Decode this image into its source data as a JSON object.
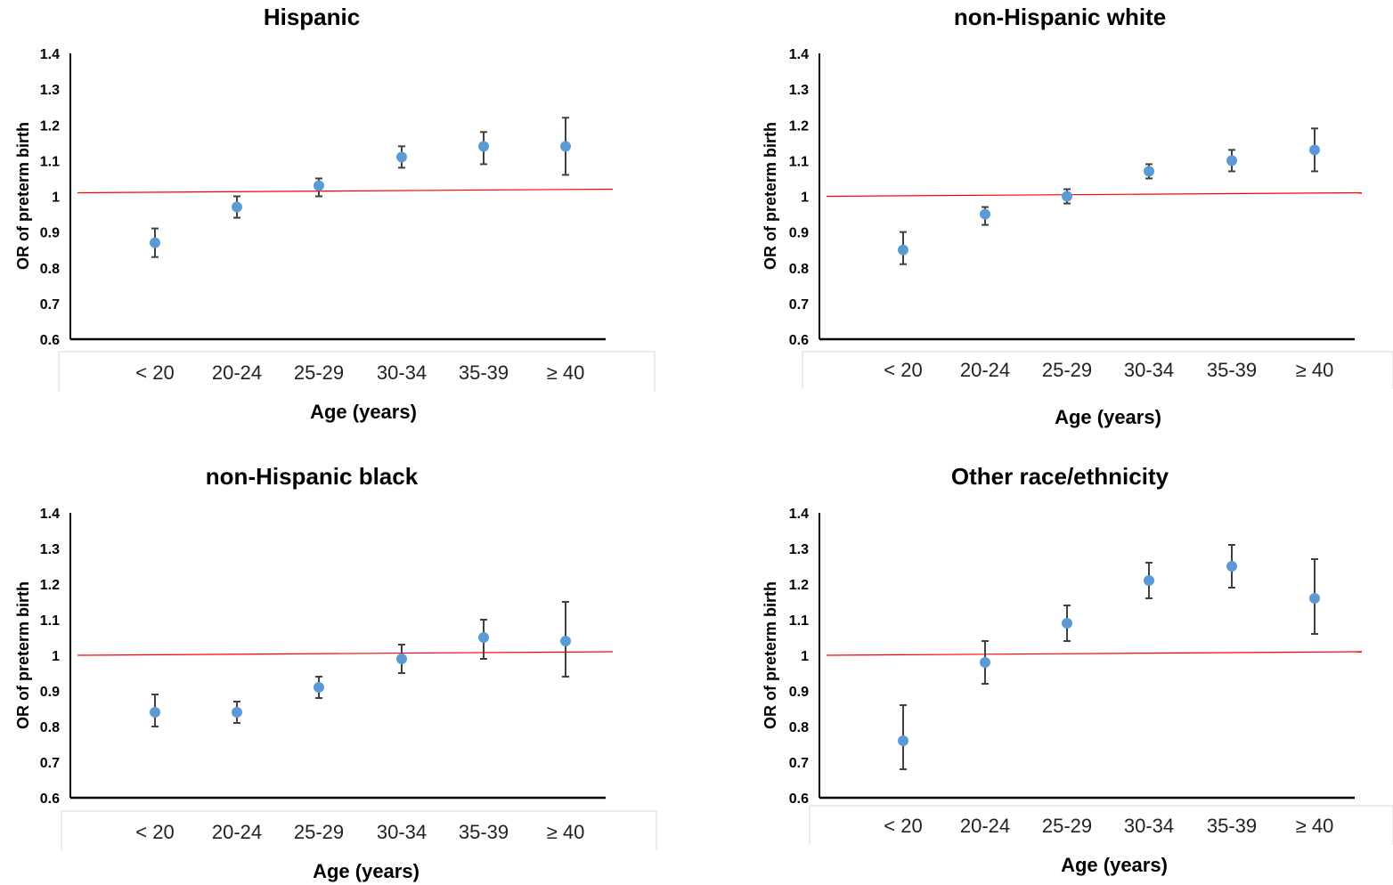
{
  "figure": {
    "ref_color": "#ff0000",
    "marker_color": "#5b9bd5",
    "errorbar_color": "#404040"
  },
  "chart_data": [
    {
      "type": "scatter",
      "title": "Hispanic",
      "xlabel": "Age (years)",
      "ylabel": "OR of preterm birth",
      "categories": [
        "< 20",
        "20-24",
        "25-29",
        "30-34",
        "35-39",
        "≥ 40"
      ],
      "values": [
        0.87,
        0.97,
        1.03,
        1.11,
        1.14,
        1.14
      ],
      "ci_lower": [
        0.83,
        0.94,
        1.0,
        1.08,
        1.09,
        1.06
      ],
      "ci_upper": [
        0.91,
        1.0,
        1.05,
        1.14,
        1.18,
        1.22
      ],
      "reference_line": [
        1.01,
        1.02
      ],
      "ylim": [
        0.6,
        1.4
      ],
      "yticks": [
        "0.6",
        "0.7",
        "0.8",
        "0.9",
        "1",
        "1.1",
        "1.2",
        "1.3",
        "1.4"
      ]
    },
    {
      "type": "scatter",
      "title": "non-Hispanic white",
      "xlabel": "Age (years)",
      "ylabel": "OR of preterm birth",
      "categories": [
        "< 20",
        "20-24",
        "25-29",
        "30-34",
        "35-39",
        "≥ 40"
      ],
      "values": [
        0.85,
        0.95,
        1.0,
        1.07,
        1.1,
        1.13
      ],
      "ci_lower": [
        0.81,
        0.92,
        0.98,
        1.05,
        1.07,
        1.07
      ],
      "ci_upper": [
        0.9,
        0.97,
        1.02,
        1.09,
        1.13,
        1.19
      ],
      "reference_line": [
        1.0,
        1.01
      ],
      "ylim": [
        0.6,
        1.4
      ],
      "yticks": [
        "0.6",
        "0.7",
        "0.8",
        "0.9",
        "1",
        "1.1",
        "1.2",
        "1.3",
        "1.4"
      ]
    },
    {
      "type": "scatter",
      "title": "non-Hispanic black",
      "xlabel": "Age (years)",
      "ylabel": "OR of preterm birth",
      "categories": [
        "< 20",
        "20-24",
        "25-29",
        "30-34",
        "35-39",
        "≥ 40"
      ],
      "values": [
        0.84,
        0.84,
        0.91,
        0.99,
        1.05,
        1.04
      ],
      "ci_lower": [
        0.8,
        0.81,
        0.88,
        0.95,
        0.99,
        0.94
      ],
      "ci_upper": [
        0.89,
        0.87,
        0.94,
        1.03,
        1.1,
        1.15
      ],
      "reference_line": [
        1.0,
        1.01
      ],
      "ylim": [
        0.6,
        1.4
      ],
      "yticks": [
        "0.6",
        "0.7",
        "0.8",
        "0.9",
        "1",
        "1.1",
        "1.2",
        "1.3",
        "1.4"
      ]
    },
    {
      "type": "scatter",
      "title": "Other race/ethnicity",
      "xlabel": "Age (years)",
      "ylabel": "OR of preterm birth",
      "categories": [
        "< 20",
        "20-24",
        "25-29",
        "30-34",
        "35-39",
        "≥ 40"
      ],
      "values": [
        0.76,
        0.98,
        1.09,
        1.21,
        1.25,
        1.16
      ],
      "ci_lower": [
        0.68,
        0.92,
        1.04,
        1.16,
        1.19,
        1.06
      ],
      "ci_upper": [
        0.86,
        1.04,
        1.14,
        1.26,
        1.31,
        1.27
      ],
      "reference_line": [
        1.0,
        1.01
      ],
      "ylim": [
        0.6,
        1.4
      ],
      "yticks": [
        "0.6",
        "0.7",
        "0.8",
        "0.9",
        "1",
        "1.1",
        "1.2",
        "1.3",
        "1.4"
      ]
    }
  ]
}
